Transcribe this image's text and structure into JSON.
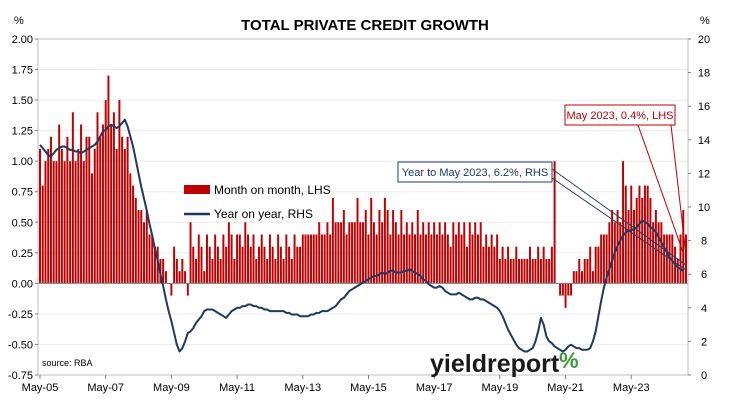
{
  "chart_data": {
    "type": "bar",
    "title": "TOTAL PRIVATE CREDIT GROWTH",
    "left_unit": "%",
    "right_unit": "%",
    "source": "source: RBA",
    "logo_text": "yieldreport",
    "logo_mark": "%",
    "ylim_left": [
      -0.75,
      2.0
    ],
    "ylim_right": [
      0,
      20
    ],
    "yticks_left": [
      "2.00",
      "1.75",
      "1.50",
      "1.25",
      "1.00",
      "0.75",
      "0.50",
      "0.25",
      "0.00",
      "-0.25",
      "-0.50",
      "-0.75"
    ],
    "yticks_right": [
      "20",
      "18",
      "16",
      "14",
      "12",
      "10",
      "8",
      "6",
      "4",
      "2",
      "0"
    ],
    "xticks": [
      "May-05",
      "May-07",
      "May-09",
      "May-11",
      "May-13",
      "May-15",
      "May-17",
      "May-19",
      "May-21",
      "May-23"
    ],
    "legend": [
      {
        "label": "Month on month, LHS",
        "color": "#c00000",
        "kind": "bar"
      },
      {
        "label": "Year on year, RHS",
        "color": "#1f3864",
        "kind": "line"
      }
    ],
    "annotations": [
      {
        "text": "May 2023, 0.4%, LHS",
        "color": "#c00000"
      },
      {
        "text": "Year to May 2023, 6.2%, RHS",
        "color": "#1f3864"
      }
    ],
    "series": [
      {
        "name": "Month on month, LHS",
        "axis": "left",
        "color": "#c00000",
        "start": "2005-05",
        "values": [
          1.1,
          0.8,
          1.0,
          1.1,
          1.2,
          1.0,
          1.0,
          1.3,
          1.1,
          1.0,
          1.2,
          1.0,
          1.4,
          1.0,
          1.1,
          1.3,
          1.0,
          1.2,
          1.2,
          0.9,
          1.1,
          1.4,
          1.2,
          1.3,
          1.5,
          1.7,
          1.3,
          1.4,
          1.1,
          1.5,
          1.2,
          1.1,
          1.2,
          0.9,
          0.8,
          0.7,
          0.6,
          0.6,
          0.5,
          0.6,
          0.4,
          0.4,
          0.3,
          0.3,
          0.2,
          0.2,
          0.1,
          0.0,
          -0.1,
          0.3,
          0.2,
          0.1,
          0.2,
          0.1,
          -0.1,
          0.5,
          0.3,
          0.2,
          0.4,
          0.3,
          0.1,
          0.4,
          0.3,
          0.2,
          0.4,
          0.3,
          0.2,
          0.4,
          0.3,
          0.5,
          0.4,
          0.2,
          0.4,
          0.4,
          0.3,
          0.5,
          0.4,
          0.3,
          0.4,
          0.2,
          0.3,
          0.4,
          0.3,
          0.2,
          0.4,
          0.3,
          0.2,
          0.4,
          0.3,
          0.2,
          0.4,
          0.3,
          0.2,
          0.4,
          0.3,
          0.3,
          0.4,
          0.4,
          0.4,
          0.4,
          0.4,
          0.4,
          0.5,
          0.4,
          0.4,
          0.5,
          0.4,
          0.7,
          0.5,
          0.5,
          0.5,
          0.6,
          0.4,
          0.5,
          0.5,
          0.5,
          0.7,
          0.5,
          0.5,
          0.6,
          0.4,
          0.7,
          0.5,
          0.4,
          0.6,
          0.5,
          0.7,
          0.6,
          0.4,
          0.6,
          0.5,
          0.4,
          0.6,
          0.4,
          0.5,
          0.4,
          0.5,
          0.4,
          0.6,
          0.4,
          0.5,
          0.4,
          0.5,
          0.4,
          0.5,
          0.4,
          0.5,
          0.4,
          0.5,
          0.4,
          0.3,
          0.5,
          0.4,
          0.5,
          0.4,
          0.5,
          0.3,
          0.5,
          0.4,
          0.5,
          0.4,
          0.5,
          0.3,
          0.4,
          0.3,
          0.4,
          0.3,
          0.4,
          0.2,
          0.3,
          0.2,
          0.3,
          0.2,
          0.2,
          0.3,
          0.2,
          0.2,
          0.2,
          0.2,
          0.3,
          0.2,
          0.2,
          0.3,
          0.2,
          0.3,
          0.2,
          0.2,
          0.3,
          1.0,
          0.0,
          -0.1,
          -0.1,
          -0.2,
          -0.1,
          -0.1,
          0.1,
          0.1,
          0.2,
          0.1,
          0.2,
          0.2,
          0.3,
          0.1,
          0.3,
          0.3,
          0.4,
          0.4,
          0.4,
          0.5,
          0.6,
          0.5,
          0.6,
          0.5,
          1.0,
          0.8,
          0.6,
          0.8,
          0.6,
          0.7,
          0.8,
          0.7,
          0.8,
          0.8,
          0.7,
          0.5,
          0.6,
          0.5,
          0.5,
          0.4,
          0.4,
          0.4,
          0.4,
          0.3,
          0.2,
          0.4,
          0.6,
          0.4
        ]
      },
      {
        "name": "Year on year, RHS",
        "axis": "right",
        "color": "#1f3864",
        "start": "2005-05",
        "values": [
          13.7,
          13.5,
          13.3,
          13.1,
          13.0,
          13.2,
          13.4,
          13.5,
          13.6,
          13.6,
          13.5,
          13.4,
          13.4,
          13.3,
          13.3,
          13.2,
          13.3,
          13.4,
          13.5,
          13.6,
          13.7,
          13.9,
          14.2,
          14.5,
          14.6,
          14.8,
          14.9,
          14.8,
          14.7,
          14.8,
          15.0,
          15.2,
          14.8,
          14.2,
          13.6,
          12.8,
          12.0,
          11.2,
          10.5,
          9.8,
          9.0,
          8.3,
          7.5,
          6.8,
          6.0,
          5.3,
          4.5,
          3.8,
          3.2,
          2.5,
          1.8,
          1.4,
          1.6,
          2.0,
          2.5,
          2.6,
          2.8,
          3.1,
          3.3,
          3.5,
          3.8,
          3.9,
          3.9,
          3.9,
          3.8,
          3.7,
          3.6,
          3.5,
          3.4,
          3.6,
          3.8,
          3.9,
          4.0,
          4.0,
          4.1,
          4.1,
          4.2,
          4.2,
          4.1,
          4.1,
          4.0,
          4.0,
          3.9,
          3.9,
          3.8,
          3.8,
          3.8,
          3.8,
          3.8,
          3.8,
          3.7,
          3.7,
          3.6,
          3.6,
          3.6,
          3.5,
          3.5,
          3.5,
          3.5,
          3.6,
          3.6,
          3.7,
          3.7,
          3.8,
          3.8,
          3.8,
          3.9,
          4.0,
          4.1,
          4.3,
          4.5,
          4.6,
          4.8,
          5.0,
          5.1,
          5.2,
          5.3,
          5.4,
          5.5,
          5.6,
          5.7,
          5.8,
          5.9,
          5.9,
          6.0,
          6.1,
          6.0,
          6.1,
          6.2,
          6.2,
          6.1,
          6.1,
          6.1,
          6.2,
          6.2,
          6.3,
          6.2,
          6.1,
          6.0,
          5.9,
          5.7,
          5.6,
          5.4,
          5.3,
          5.2,
          5.2,
          5.3,
          5.2,
          5.0,
          4.9,
          4.8,
          4.8,
          4.8,
          4.9,
          4.8,
          4.7,
          4.6,
          4.5,
          4.5,
          4.6,
          4.6,
          4.5,
          4.5,
          4.4,
          4.3,
          4.2,
          4.1,
          4.0,
          3.8,
          3.5,
          3.1,
          2.7,
          2.4,
          2.1,
          1.8,
          1.6,
          1.5,
          1.4,
          1.4,
          1.5,
          1.6,
          2.0,
          2.6,
          3.4,
          3.0,
          2.3,
          2.0,
          1.9,
          1.7,
          1.6,
          1.5,
          1.4,
          1.5,
          1.7,
          1.8,
          1.7,
          1.6,
          1.6,
          1.5,
          1.5,
          1.5,
          1.6,
          2.0,
          2.6,
          3.5,
          4.4,
          5.2,
          5.8,
          6.3,
          6.8,
          7.3,
          7.7,
          8.0,
          8.3,
          8.5,
          8.6,
          8.6,
          8.7,
          8.8,
          9.0,
          9.2,
          9.1,
          9.0,
          8.8,
          8.7,
          8.5,
          8.2,
          7.9,
          7.6,
          7.3,
          7.0,
          6.8,
          6.6,
          6.4,
          6.3,
          6.2
        ]
      }
    ]
  }
}
